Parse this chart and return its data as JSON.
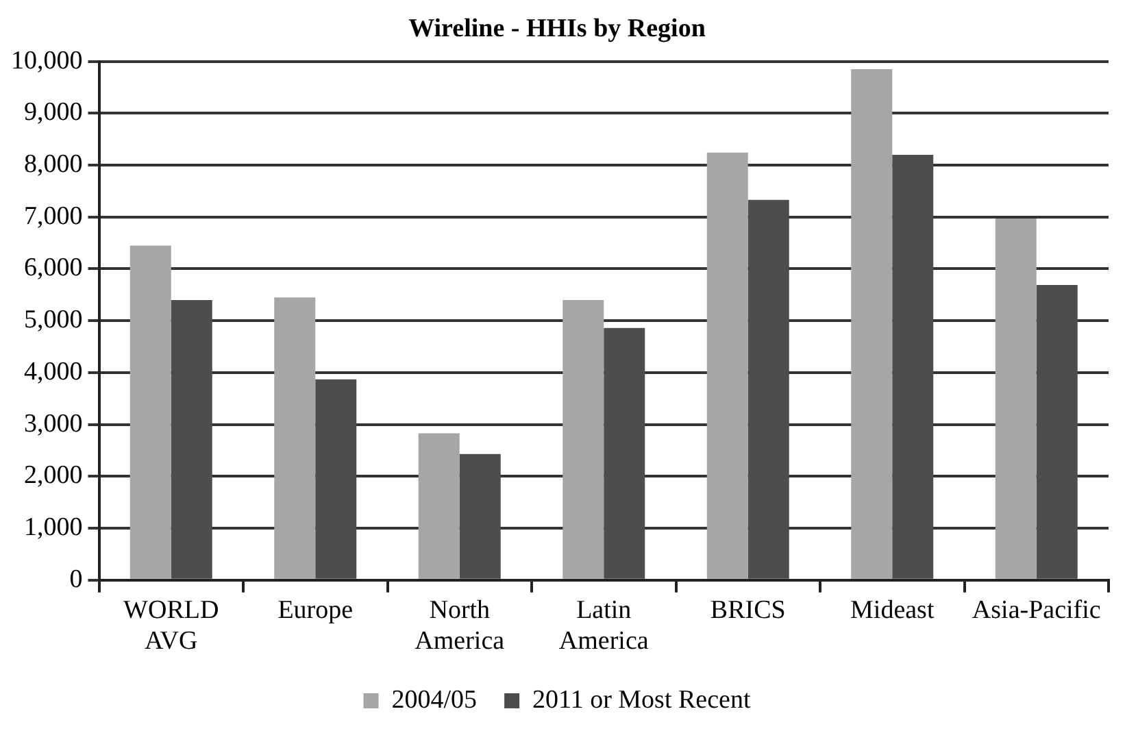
{
  "chart_data": {
    "type": "bar",
    "title": "Wireline - HHIs by Region",
    "categories": [
      "WORLD AVG",
      "Europe",
      "North America",
      "Latin America",
      "BRICS",
      "Mideast",
      "Asia-Pacific"
    ],
    "series": [
      {
        "name": "2004/05",
        "color": "#a6a6a6",
        "values": [
          6450,
          5450,
          2830,
          5400,
          8240,
          9850,
          6970
        ]
      },
      {
        "name": "2011 or Most Recent",
        "color": "#4d4d4d",
        "values": [
          5400,
          3870,
          2430,
          4860,
          7330,
          8200,
          5690
        ]
      }
    ],
    "ylim": [
      0,
      10000
    ],
    "yticks": [
      0,
      {
        "value": 1000,
        "label": "1,000"
      },
      {
        "value": 2000,
        "label": "2,000"
      },
      {
        "value": 3000,
        "label": "3,000"
      },
      {
        "value": 4000,
        "label": "4,000"
      },
      {
        "value": 5000,
        "label": "5,000"
      },
      {
        "value": 6000,
        "label": "6,000"
      },
      {
        "value": 7000,
        "label": "7,000"
      },
      {
        "value": 8000,
        "label": "8,000"
      },
      {
        "value": 9000,
        "label": "9,000"
      },
      {
        "value": 10000,
        "label": "10,000"
      }
    ],
    "grid": "y",
    "legend": "bottom"
  }
}
